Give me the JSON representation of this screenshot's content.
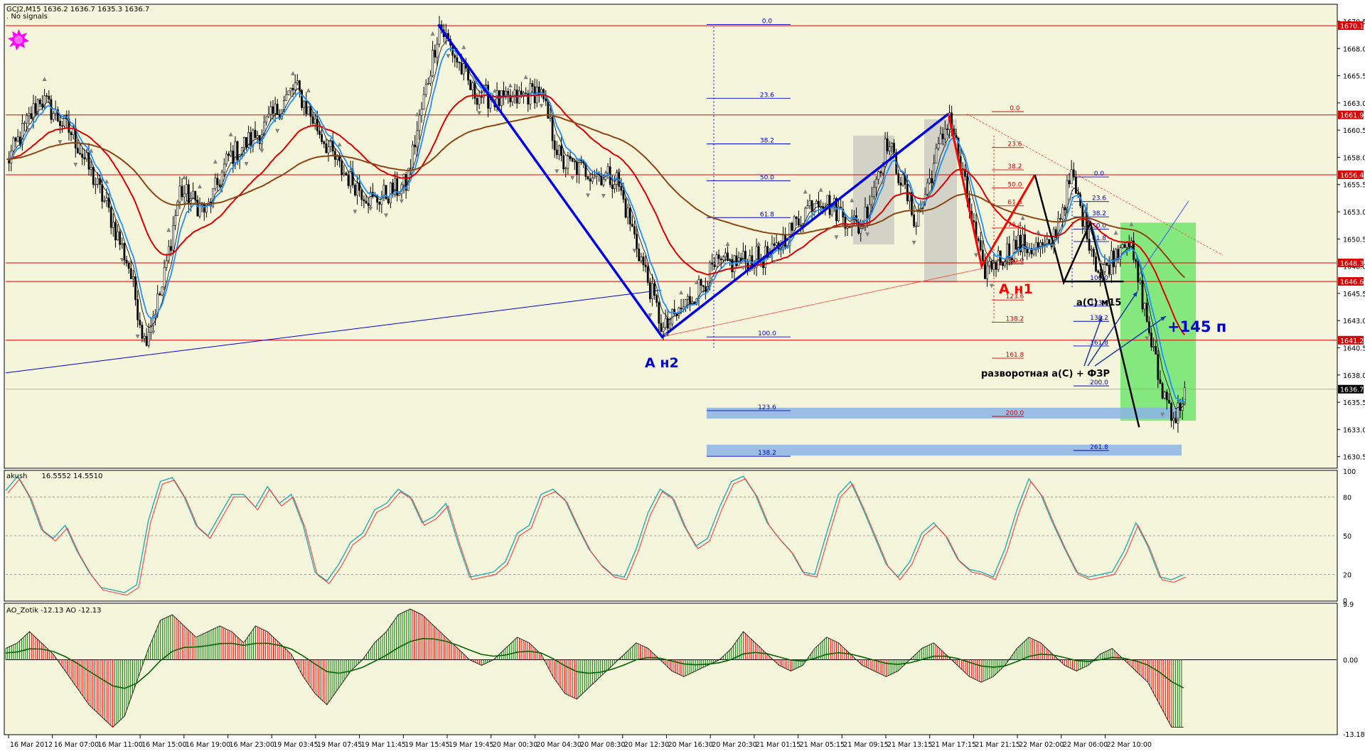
{
  "colors": {
    "background": "#f5f5dc",
    "frame": "#000000",
    "bull_candle": "#000000",
    "bear_candle": "#000000",
    "sma_fast": "#1e90ff",
    "ema_mid": "#e00000",
    "sma_slow": "#8b4513",
    "level_line": "#dc0000",
    "wave_blue": "#0000e6",
    "wave_red": "#ff0000",
    "target_zone": "#5fe35f",
    "highlight_zone": "#b4b4b4",
    "support_band": "#8cb4e6",
    "osc_line1": "#ff4040",
    "osc_line2": "#20b0b0",
    "ao_up": "#008000",
    "ao_down": "#ff0000",
    "ao_signal": "#006400",
    "text_blue": "#0000cc",
    "text_red": "#cc0000",
    "signal_star": "#ff00ff"
  },
  "header": {
    "symbol_line": "GCJ2,M15  1636.2 1636.7 1635.3 1636.7",
    "signals_line": ". No signals"
  },
  "chart_data": [
    {
      "type": "candlestick",
      "pane": "main",
      "symbol": "GCJ2",
      "timeframe": "M15",
      "ylim": [
        1629.5,
        1672.0
      ],
      "y_ticks": [
        "1670.5",
        "1668.0",
        "1665.5",
        "1663.0",
        "1660.5",
        "1658.0",
        "1655.5",
        "1653.0",
        "1650.5",
        "1648.0",
        "1645.5",
        "1643.0",
        "1640.5",
        "1638.0",
        "1635.5",
        "1633.0",
        "1630.5"
      ],
      "y_tick_values": [
        1670.5,
        1668.0,
        1665.5,
        1663.0,
        1660.5,
        1658.0,
        1655.5,
        1653.0,
        1650.5,
        1648.0,
        1645.5,
        1643.0,
        1640.5,
        1638.0,
        1635.5,
        1633.0,
        1630.5
      ],
      "price_level_labels": [
        "1670.1",
        "1661.9",
        "1656.4",
        "1648.3",
        "1646.6",
        "1641.2",
        "1636.7"
      ],
      "price_levels": [
        1670.1,
        1661.9,
        1656.4,
        1648.3,
        1646.6,
        1641.2
      ],
      "current_price": 1636.7,
      "x_labels": [
        "16 Mar 2012",
        "16 Mar 07:00",
        "16 Mar 11:00",
        "16 Mar 15:00",
        "16 Mar 19:00",
        "16 Mar 23:00",
        "19 Mar 03:45",
        "19 Mar 07:45",
        "19 Mar 11:45",
        "19 Mar 15:45",
        "19 Mar 19:45",
        "20 Mar 00:30",
        "20 Mar 04:30",
        "20 Mar 08:30",
        "20 Mar 12:30",
        "20 Mar 16:30",
        "20 Mar 20:30",
        "21 Mar 01:15",
        "21 Mar 05:15",
        "21 Mar 09:15",
        "21 Mar 13:15",
        "21 Mar 17:15",
        "21 Mar 21:15",
        "22 Mar 02:00",
        "22 Mar 06:00",
        "22 Mar 10:00"
      ],
      "bars": 600,
      "close_path": [
        [
          0,
          1657.5
        ],
        [
          15,
          1663.5
        ],
        [
          30,
          1660.0
        ],
        [
          45,
          1653.5
        ],
        [
          55,
          1648.0
        ],
        [
          62,
          1641.2
        ],
        [
          70,
          1646.0
        ],
        [
          78,
          1655.0
        ],
        [
          90,
          1653.0
        ],
        [
          100,
          1658.0
        ],
        [
          115,
          1660.5
        ],
        [
          130,
          1664.5
        ],
        [
          150,
          1657.0
        ],
        [
          165,
          1654.0
        ],
        [
          180,
          1655.5
        ],
        [
          195,
          1670.2
        ],
        [
          210,
          1664.0
        ],
        [
          225,
          1663.0
        ],
        [
          240,
          1664.2
        ],
        [
          250,
          1657.5
        ],
        [
          275,
          1656.0
        ],
        [
          296,
          1642.0
        ],
        [
          320,
          1648.0
        ],
        [
          345,
          1649.0
        ],
        [
          365,
          1654.5
        ],
        [
          385,
          1651.5
        ],
        [
          397,
          1659.5
        ],
        [
          410,
          1652.0
        ],
        [
          425,
          1662.0
        ],
        [
          440,
          1647.5
        ],
        [
          455,
          1650.0
        ],
        [
          470,
          1649.5
        ],
        [
          480,
          1656.2
        ],
        [
          493,
          1647.0
        ],
        [
          505,
          1651.0
        ],
        [
          512,
          1645.0
        ],
        [
          520,
          1637.0
        ],
        [
          527,
          1634.0
        ],
        [
          531,
          1636.7
        ]
      ],
      "overlays": [
        {
          "name": "SMA fast",
          "color": "#1e90ff"
        },
        {
          "name": "EMA",
          "color": "#e00000"
        },
        {
          "name": "SMA slow",
          "color": "#8b4513"
        }
      ],
      "fibonacci": [
        {
          "color": "blue",
          "levels": [
            "0.0",
            "23.6",
            "38.2",
            "50.0",
            "61.8",
            "100.0",
            "123.6",
            "138.2"
          ]
        },
        {
          "color": "red",
          "levels": [
            "0.0",
            "23.6",
            "38.2",
            "50.0",
            "61.8",
            "76.4",
            "100.0",
            "123.6",
            "138.2",
            "161.8",
            "200.0"
          ]
        },
        {
          "color": "blue",
          "levels": [
            "0.0",
            "23.6",
            "38.2",
            "50.0",
            "61.8",
            "100.0",
            "123.6",
            "138.2",
            "161.8",
            "200.0",
            "261.8"
          ]
        }
      ],
      "annotations": [
        "A н2",
        "A н1",
        "a(C) м15",
        "+145 п",
        "разворотная a(C) + ФЗР"
      ]
    },
    {
      "type": "line",
      "pane": "oscillator",
      "indicator_label": "akush",
      "indicator_values": "16.5552 14.5510",
      "ylim": [
        0,
        100
      ],
      "y_ticks": [
        "100",
        "80",
        "50",
        "20",
        "0"
      ],
      "y_tick_values": [
        100,
        80,
        50,
        20,
        0
      ],
      "levels": [
        80,
        50,
        20
      ],
      "series": [
        {
          "values": [
            85,
            96,
            80,
            55,
            48,
            58,
            38,
            22,
            10,
            8,
            6,
            12,
            62,
            92,
            95,
            80,
            58,
            50,
            66,
            82,
            82,
            72,
            88,
            75,
            82,
            58,
            22,
            15,
            28,
            45,
            52,
            70,
            75,
            86,
            80,
            60,
            65,
            75,
            45,
            18,
            20,
            22,
            30,
            52,
            58,
            82,
            86,
            78,
            58,
            40,
            28,
            20,
            18,
            40,
            68,
            86,
            80,
            58,
            42,
            48,
            72,
            92,
            96,
            82,
            60,
            48,
            38,
            22,
            20,
            52,
            82,
            92,
            72,
            50,
            28,
            18,
            30,
            52,
            60,
            50,
            32,
            24,
            22,
            18,
            40,
            70,
            94,
            82,
            60,
            40,
            22,
            18,
            20,
            22,
            38,
            60,
            42,
            18,
            16,
            20
          ]
        }
      ]
    },
    {
      "type": "bar",
      "pane": "awesome_oscillator",
      "indicator_label": "AO_Zotik -12.13  AO -12.13",
      "ylim": [
        -13.18,
        9.9
      ],
      "y_ticks": [
        "9.9",
        "0.00",
        "-13.18"
      ],
      "y_tick_values": [
        9.9,
        0.0,
        -13.18
      ],
      "series": [
        {
          "values": [
            2,
            3,
            5,
            3,
            1,
            -2,
            -5,
            -8,
            -10,
            -12,
            -10,
            -4,
            2,
            7,
            8,
            6,
            4,
            5,
            6,
            5,
            3,
            6,
            5,
            3,
            1,
            -3,
            -6,
            -8,
            -5,
            -2,
            0,
            3,
            5,
            8,
            9,
            8,
            6,
            4,
            2,
            0,
            -1,
            0,
            2,
            4,
            3,
            1,
            -3,
            -6,
            -7,
            -5,
            -3,
            -1,
            1,
            3,
            2,
            0,
            -2,
            -3,
            -2,
            -1,
            0,
            2,
            5,
            3,
            1,
            -1,
            -2,
            -1,
            2,
            4,
            3,
            1,
            -1,
            -2,
            -3,
            -2,
            0,
            2,
            3,
            1,
            -1,
            -3,
            -4,
            -3,
            -1,
            2,
            4,
            3,
            1,
            -1,
            -2,
            -1,
            1,
            2,
            0,
            -2,
            -4,
            -8,
            -12,
            -12
          ]
        }
      ]
    }
  ]
}
